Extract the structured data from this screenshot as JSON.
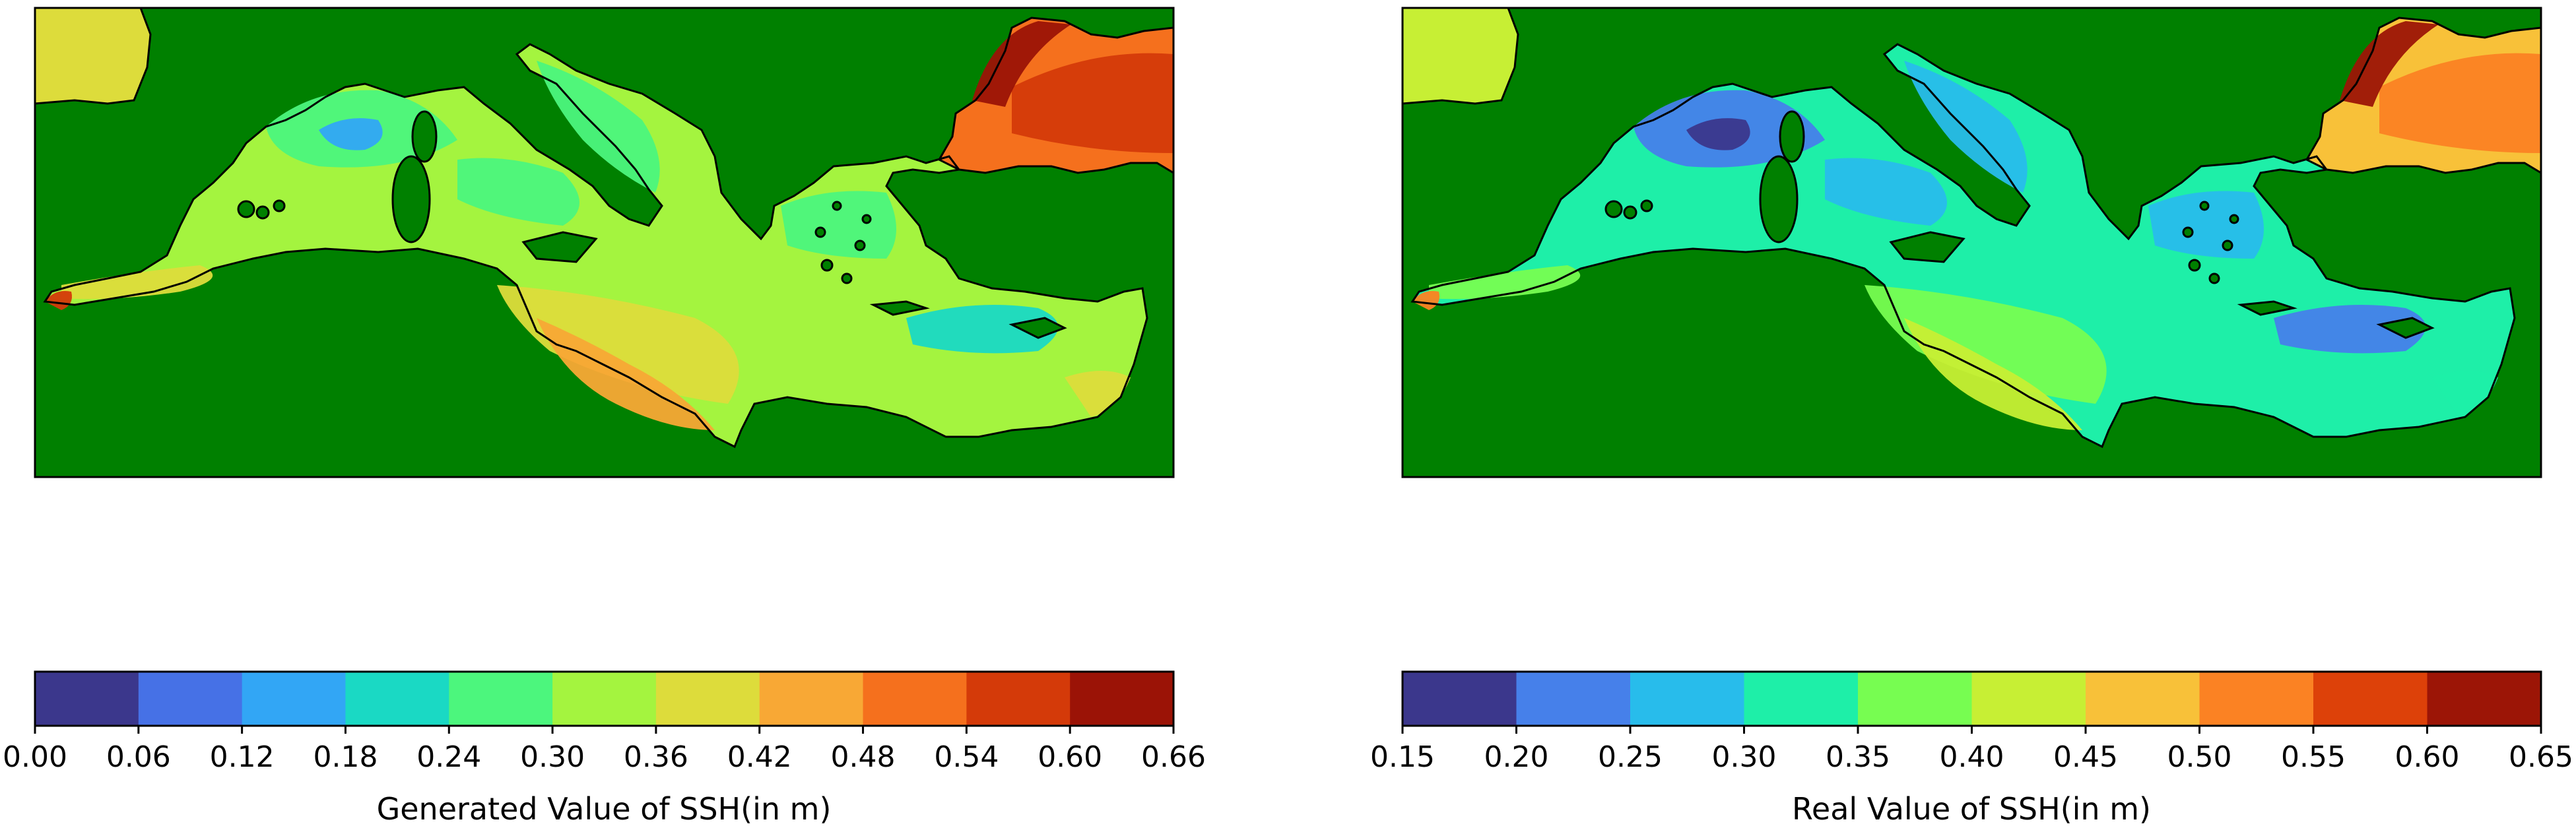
{
  "figure": {
    "panels": [
      {
        "id": "generated",
        "colorbar_label": "Generated Value of SSH(in m)",
        "colorbar_ticks": [
          "0.00",
          "0.06",
          "0.12",
          "0.18",
          "0.24",
          "0.30",
          "0.36",
          "0.42",
          "0.48",
          "0.54",
          "0.60",
          "0.66"
        ],
        "colorbar_colors": [
          "#3b378c",
          "#4671e6",
          "#32a6f5",
          "#1ad9c4",
          "#4cf67d",
          "#a4f43f",
          "#dddc3b",
          "#f8a835",
          "#f5701d",
          "#d43a09",
          "#9b1306"
        ],
        "region_values": {
          "basin_base": 0.33,
          "black_sea": 0.49,
          "black_sea_east": 0.56,
          "black_sea_edge": 0.64,
          "atlantic_corner": 0.38,
          "gulf_of_lion": 0.27,
          "gulf_of_lion_core": 0.15,
          "tyrrhenian": 0.28,
          "adriatic": 0.25,
          "aegean": 0.29,
          "ionian_south": 0.37,
          "libyan_coast": 0.45,
          "alboran": 0.37,
          "gibraltar": 0.57,
          "levantine_east": 0.22,
          "levantine_coast": 0.37
        }
      },
      {
        "id": "real",
        "colorbar_label": "Real Value of SSH(in m)",
        "colorbar_ticks": [
          "0.15",
          "0.20",
          "0.25",
          "0.30",
          "0.35",
          "0.40",
          "0.45",
          "0.50",
          "0.55",
          "0.60",
          "0.65"
        ],
        "colorbar_colors": [
          "#3b378c",
          "#4680ea",
          "#28bceb",
          "#1eefa8",
          "#77fd51",
          "#c7ef34",
          "#f8c139",
          "#fb8223",
          "#dd4109",
          "#9c1506"
        ],
        "region_values": {
          "basin_base": 0.31,
          "black_sea": 0.45,
          "black_sea_east": 0.52,
          "black_sea_edge": 0.62,
          "atlantic_corner": 0.42,
          "gulf_of_lion": 0.23,
          "gulf_of_lion_core": 0.17,
          "tyrrhenian": 0.27,
          "adriatic": 0.26,
          "aegean": 0.26,
          "ionian_south": 0.38,
          "libyan_coast": 0.42,
          "alboran": 0.36,
          "gibraltar": 0.5,
          "levantine_east": 0.22,
          "levantine_coast": 0.31
        }
      }
    ],
    "land_color": "#008000",
    "coast_color": "#000000"
  }
}
